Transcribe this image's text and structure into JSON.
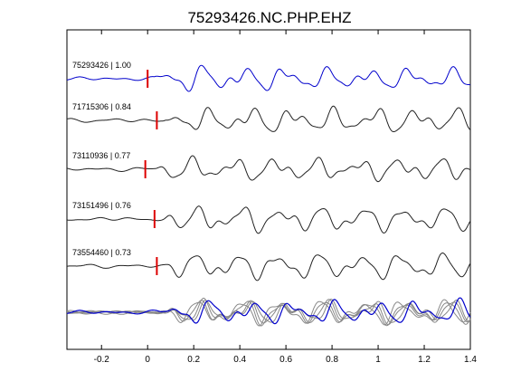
{
  "chart_data": {
    "type": "line",
    "title": "75293426.NC.PHP.EHZ",
    "xlabel": "",
    "ylabel": "",
    "xlim": [
      -0.35,
      1.4
    ],
    "x_ticks": [
      -0.2,
      0,
      0.2,
      0.4,
      0.6,
      0.8,
      1,
      1.2,
      1.4
    ],
    "x_tick_labels": [
      "-0.2",
      "0",
      "0.2",
      "0.4",
      "0.6",
      "0.8",
      "1",
      "1.2",
      "1.4"
    ],
    "grid": false,
    "legend": "none",
    "colors": {
      "reference": "#0000cc",
      "trace": "#222222",
      "stack": "#888888",
      "pick": "#dd0000"
    },
    "traces": [
      {
        "label": "75293426 | 1.00",
        "pick_time": 0.0,
        "reference": true
      },
      {
        "label": "71715306 | 0.84",
        "pick_time": 0.04,
        "reference": false
      },
      {
        "label": "73110936 | 0.77",
        "pick_time": -0.01,
        "reference": false
      },
      {
        "label": "73151496 | 0.76",
        "pick_time": 0.03,
        "reference": false
      },
      {
        "label": "73554460 | 0.73",
        "pick_time": 0.04,
        "reference": false
      }
    ]
  }
}
